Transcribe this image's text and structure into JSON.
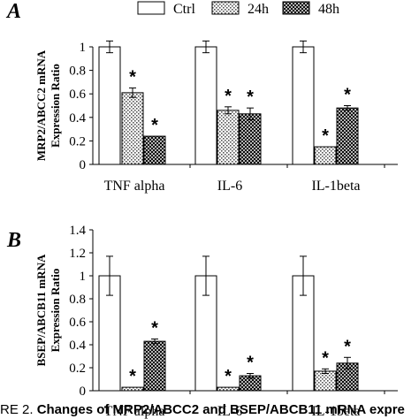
{
  "legend": [
    {
      "label": "Ctrl",
      "pattern": "white"
    },
    {
      "label": "24h",
      "pattern": "dots"
    },
    {
      "label": "48h",
      "pattern": "crosshatch"
    }
  ],
  "caption": {
    "lead": "RE 2. ",
    "text": "Changes of MRP2/ABCC2 and BSEP/ABCB11 mRNA expre"
  },
  "chart_data": [
    {
      "type": "bar",
      "panel_label": "A",
      "ylabel_lines": [
        "MRP2/ABCC2 mRNA",
        "Expression Ratio"
      ],
      "ylim": [
        0,
        1
      ],
      "yticks": [
        "0",
        "0.2",
        "0.4",
        "0.6",
        "0.8",
        "1"
      ],
      "categories": [
        "TNF alpha",
        "IL-6",
        "IL-1beta"
      ],
      "series": [
        {
          "name": "Ctrl",
          "values": [
            1.0,
            1.0,
            1.0
          ],
          "errors": [
            0.05,
            0.05,
            0.05
          ]
        },
        {
          "name": "24h",
          "values": [
            0.61,
            0.46,
            0.15
          ],
          "errors": [
            0.04,
            0.03,
            0.0
          ]
        },
        {
          "name": "48h",
          "values": [
            0.24,
            0.43,
            0.48
          ],
          "errors": [
            0.0,
            0.05,
            0.02
          ]
        }
      ],
      "significance": [
        {
          "category": 0,
          "series": 1,
          "mark": "*"
        },
        {
          "category": 0,
          "series": 2,
          "mark": "*"
        },
        {
          "category": 1,
          "series": 1,
          "mark": "*"
        },
        {
          "category": 1,
          "series": 2,
          "mark": "*"
        },
        {
          "category": 2,
          "series": 1,
          "mark": "*"
        },
        {
          "category": 2,
          "series": 2,
          "mark": "*"
        }
      ]
    },
    {
      "type": "bar",
      "panel_label": "B",
      "ylabel_lines": [
        "BSEP/ABCB11 mRNA",
        "Expression Ratio"
      ],
      "ylim": [
        0,
        1.4
      ],
      "yticks": [
        "0",
        "0.2",
        "0.4",
        "0.6",
        "0.8",
        "1",
        "1.2",
        "1.4"
      ],
      "categories": [
        "TNF alpha",
        "IL-6",
        "IL-1beta"
      ],
      "series": [
        {
          "name": "Ctrl",
          "values": [
            1.0,
            1.0,
            1.0
          ],
          "errors": [
            0.17,
            0.17,
            0.17
          ]
        },
        {
          "name": "24h",
          "values": [
            0.03,
            0.03,
            0.17
          ],
          "errors": [
            0.0,
            0.0,
            0.02
          ]
        },
        {
          "name": "48h",
          "values": [
            0.43,
            0.13,
            0.24
          ],
          "errors": [
            0.02,
            0.02,
            0.05
          ]
        }
      ],
      "significance": [
        {
          "category": 0,
          "series": 1,
          "mark": "*"
        },
        {
          "category": 0,
          "series": 2,
          "mark": "*"
        },
        {
          "category": 1,
          "series": 1,
          "mark": "*"
        },
        {
          "category": 1,
          "series": 2,
          "mark": "*"
        },
        {
          "category": 2,
          "series": 1,
          "mark": "*"
        },
        {
          "category": 2,
          "series": 2,
          "mark": "*"
        }
      ]
    }
  ]
}
